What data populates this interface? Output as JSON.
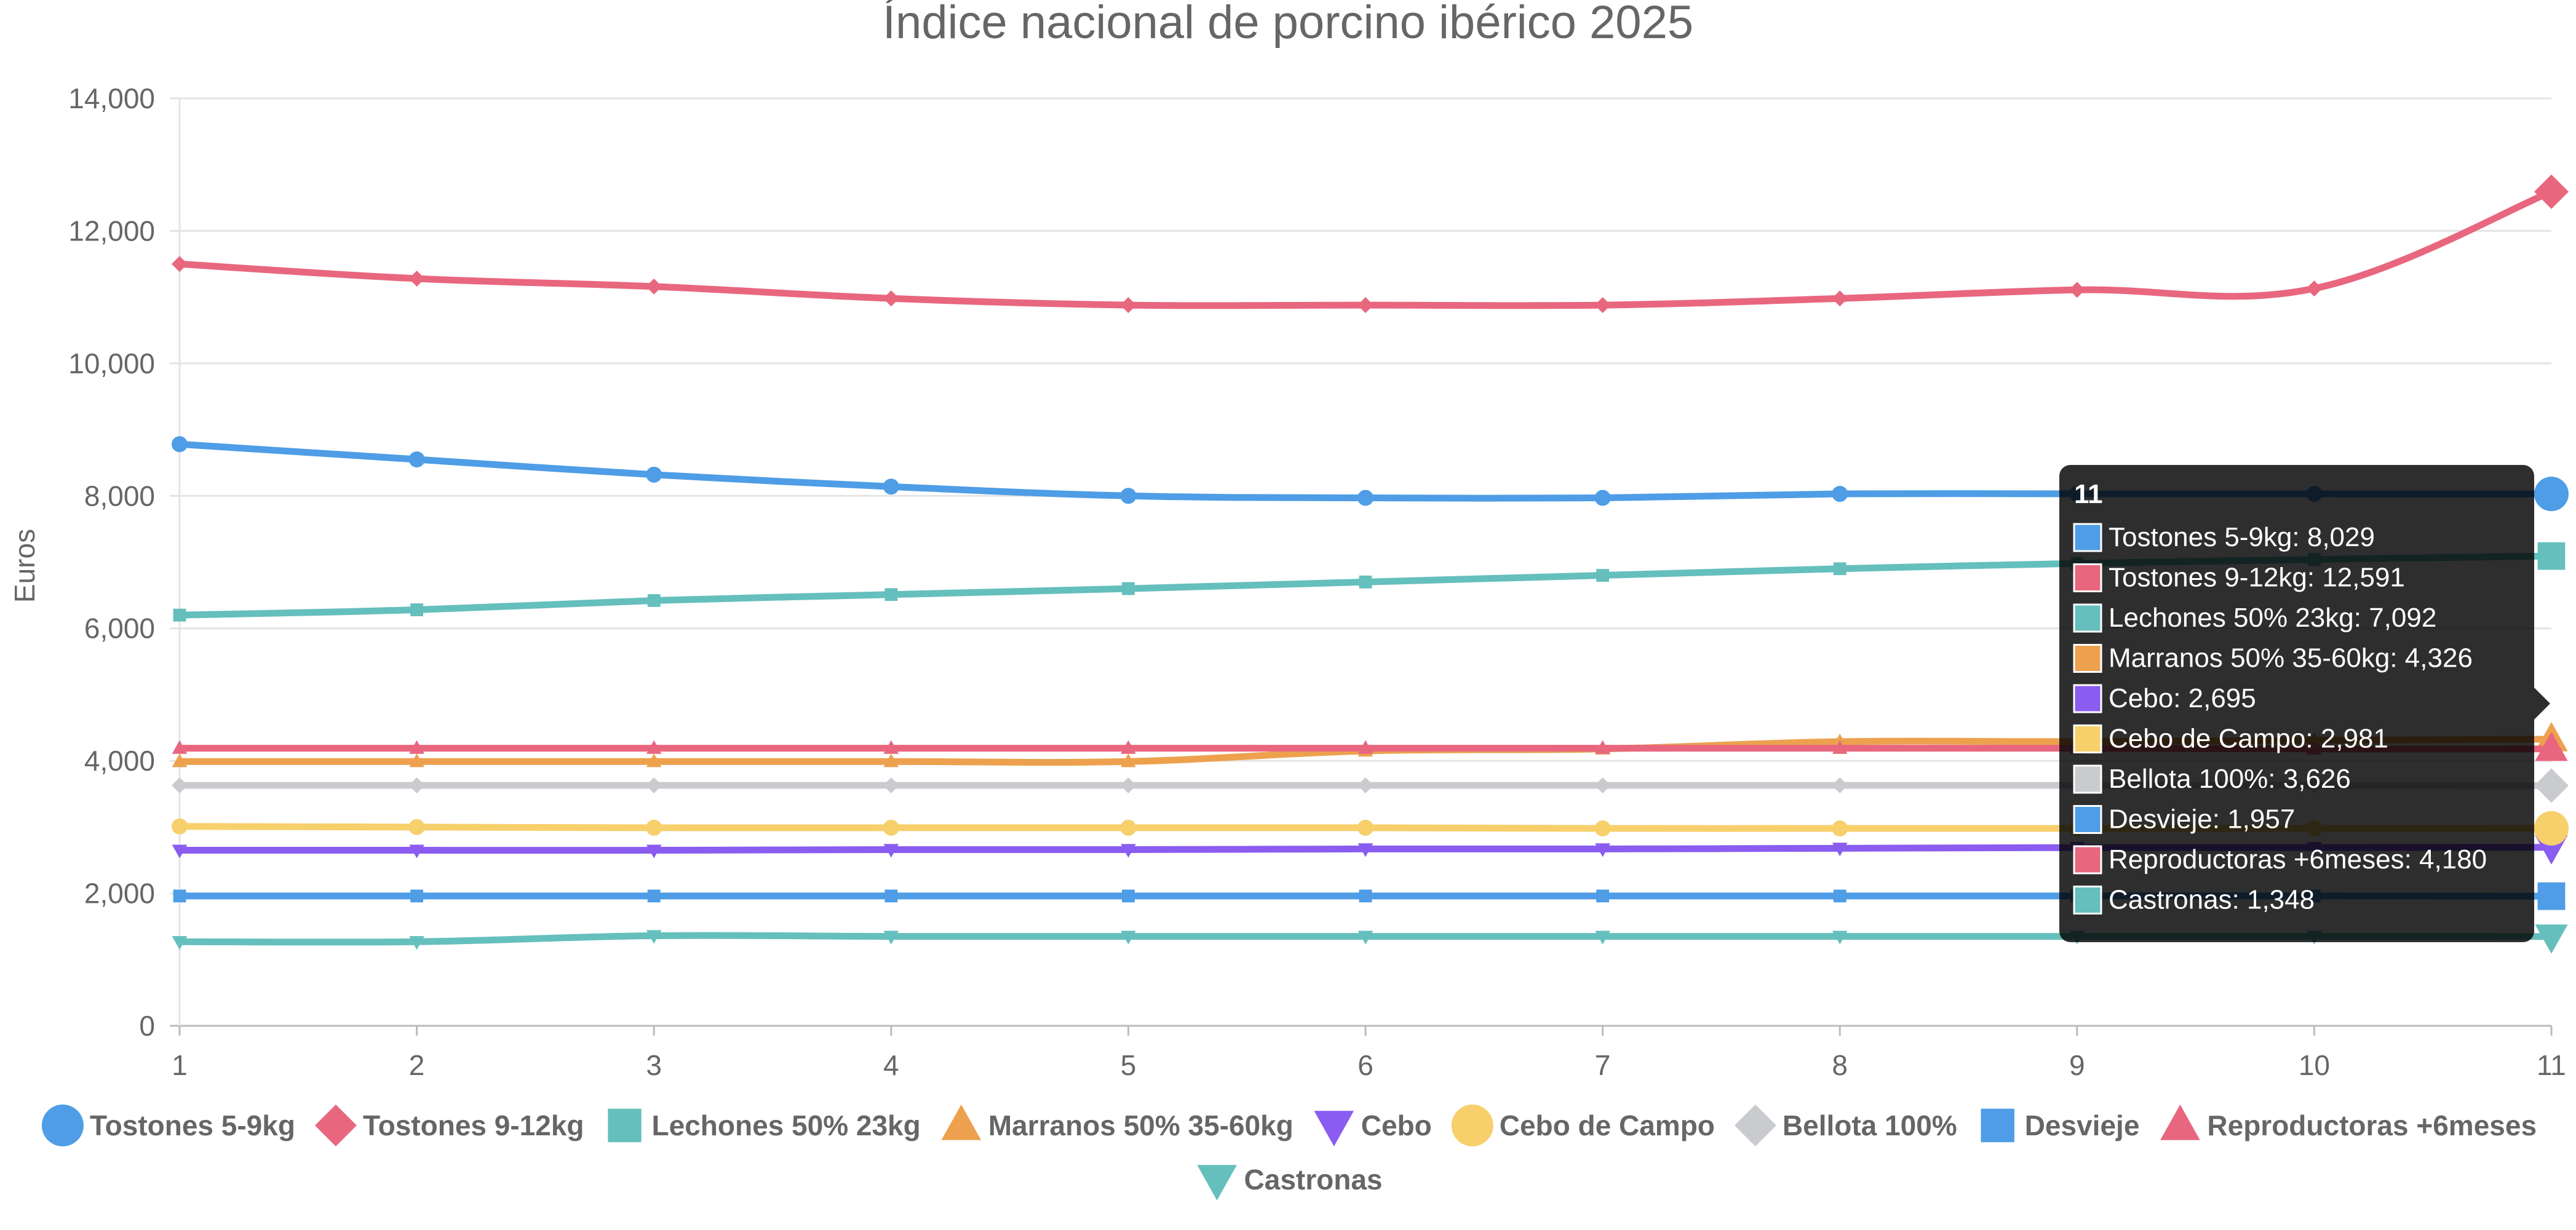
{
  "chart_data": {
    "type": "line",
    "title": "Índice nacional de porcino ibérico 2025",
    "ylabel": "Euros",
    "xlabel": "",
    "x": [
      1,
      2,
      3,
      4,
      5,
      6,
      7,
      8,
      9,
      10,
      11
    ],
    "xlim": [
      1,
      11
    ],
    "ylim": [
      0,
      14000
    ],
    "yticks": [
      0,
      2000,
      4000,
      6000,
      8000,
      10000,
      12000,
      14000
    ],
    "ytick_labels": [
      "0",
      "2,000",
      "4,000",
      "6,000",
      "8,000",
      "10,000",
      "12,000",
      "14,000"
    ],
    "grid": true,
    "legend_position": "bottom",
    "series": [
      {
        "name": "Tostones 5-9kg",
        "marker": "circle",
        "color": "#4e9de6",
        "values": [
          8780,
          8550,
          8320,
          8140,
          8000,
          7970,
          7970,
          8030,
          8030,
          8030,
          8029
        ]
      },
      {
        "name": "Tostones 9-12kg",
        "marker": "diamond",
        "color": "#e8677e",
        "values": [
          11500,
          11280,
          11160,
          10980,
          10880,
          10880,
          10880,
          10980,
          11110,
          11130,
          12591
        ]
      },
      {
        "name": "Lechones 50% 23kg",
        "marker": "square",
        "color": "#65bfbd",
        "values": [
          6200,
          6280,
          6420,
          6510,
          6600,
          6700,
          6800,
          6900,
          6980,
          7040,
          7092
        ]
      },
      {
        "name": "Marranos 50% 35-60kg",
        "marker": "triangle",
        "color": "#eda14e",
        "values": [
          3990,
          3990,
          3990,
          3990,
          3990,
          4150,
          4180,
          4290,
          4290,
          4310,
          4326
        ]
      },
      {
        "name": "Cebo",
        "marker": "triangle-down",
        "color": "#8a5cf0",
        "values": [
          2650,
          2650,
          2650,
          2660,
          2660,
          2670,
          2670,
          2680,
          2690,
          2690,
          2695
        ]
      },
      {
        "name": "Cebo de Campo",
        "marker": "circle",
        "color": "#f7cf6b",
        "values": [
          3010,
          3000,
          2990,
          2990,
          2990,
          2990,
          2980,
          2980,
          2980,
          2980,
          2981
        ]
      },
      {
        "name": "Bellota 100%",
        "marker": "diamond",
        "color": "#c9cbcf",
        "values": [
          3630,
          3630,
          3630,
          3630,
          3630,
          3630,
          3630,
          3630,
          3630,
          3630,
          3626
        ]
      },
      {
        "name": "Desvieje",
        "marker": "square",
        "color": "#4e9de6",
        "values": [
          1960,
          1960,
          1960,
          1960,
          1960,
          1960,
          1960,
          1960,
          1960,
          1960,
          1957
        ]
      },
      {
        "name": "Reproductoras +6meses",
        "marker": "triangle",
        "color": "#e8677e",
        "values": [
          4190,
          4190,
          4190,
          4190,
          4190,
          4190,
          4190,
          4190,
          4190,
          4180,
          4180
        ]
      },
      {
        "name": "Castronas",
        "marker": "triangle-down",
        "color": "#65bfbd",
        "values": [
          1270,
          1270,
          1360,
          1350,
          1350,
          1350,
          1350,
          1350,
          1350,
          1350,
          1348
        ]
      }
    ],
    "tooltip": {
      "title": "11",
      "lines": [
        "Tostones 5-9kg: 8,029",
        "Tostones 9-12kg: 12,591",
        "Lechones 50% 23kg: 7,092",
        "Marranos 50% 35-60kg: 4,326",
        "Cebo: 2,695",
        "Cebo de Campo: 2,981",
        "Bellota 100%: 3,626",
        "Desvieje: 1,957",
        "Reproductoras +6meses: 4,180",
        "Castronas: 1,348"
      ]
    }
  }
}
